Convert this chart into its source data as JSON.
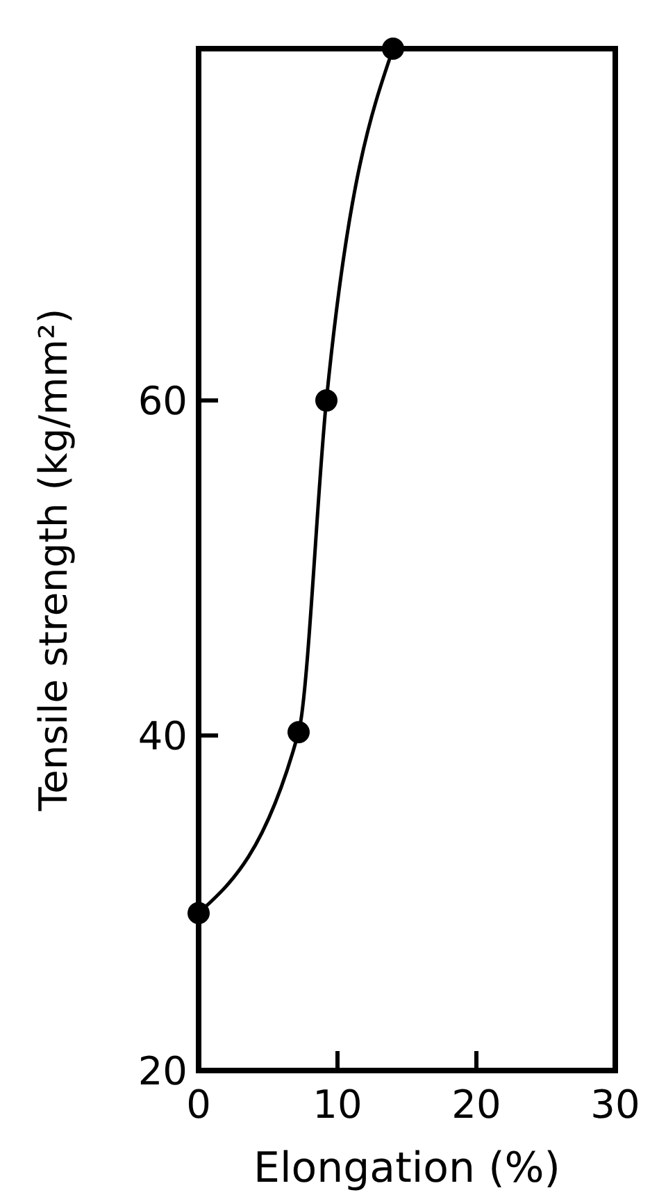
{
  "chart_data": {
    "type": "line",
    "xlabel": "Elongation (%)",
    "ylabel": "Tensile strength (kg/mm²)",
    "xlim": [
      0,
      30
    ],
    "ylim": [
      20,
      81
    ],
    "xticks": [
      0,
      10,
      20,
      30
    ],
    "yticks": [
      20,
      40,
      60
    ],
    "marker": "circle",
    "grid": false,
    "series": [
      {
        "color": "#000000",
        "x": [
          0,
          7.2,
          9.2,
          14
        ],
        "values": [
          29.4,
          40.2,
          60,
          81
        ]
      }
    ]
  }
}
